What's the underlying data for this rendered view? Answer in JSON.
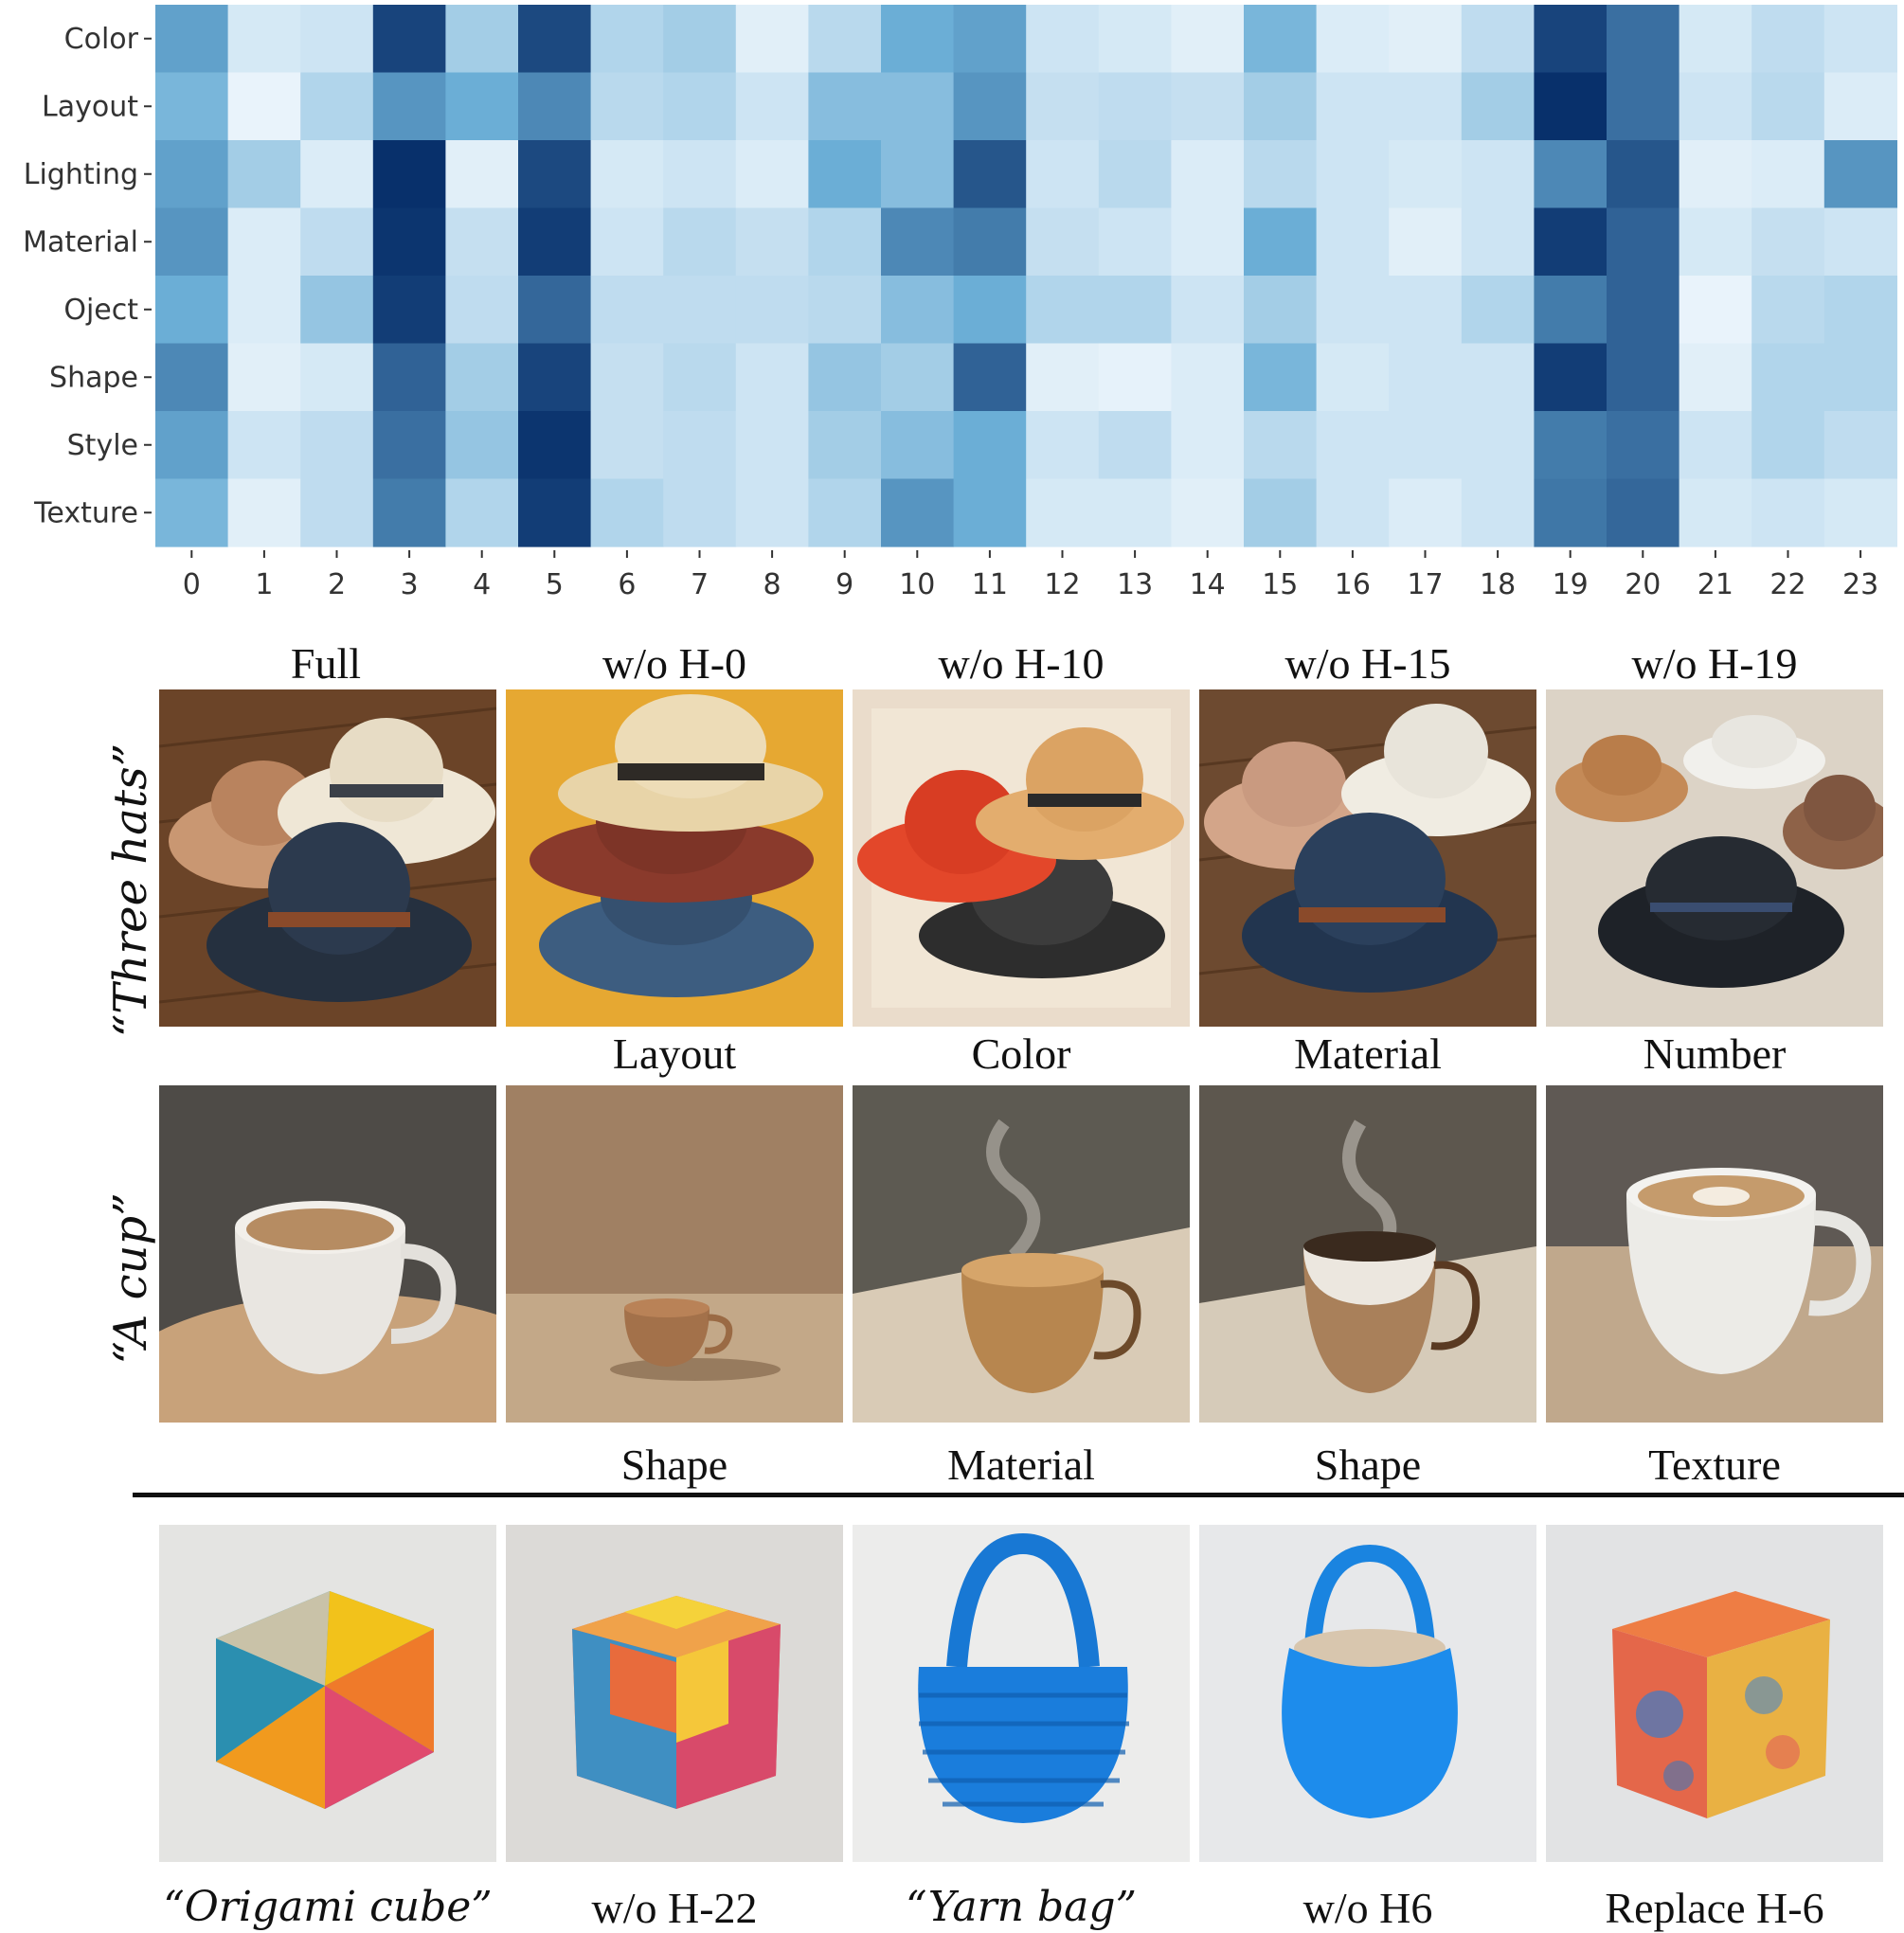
{
  "chart_data": {
    "type": "heatmap",
    "rows": [
      "Color",
      "Layout",
      "Lighting",
      "Material",
      "Oject",
      "Shape",
      "Style",
      "Texture"
    ],
    "columns": [
      "0",
      "1",
      "2",
      "3",
      "4",
      "5",
      "6",
      "7",
      "8",
      "9",
      "10",
      "11",
      "12",
      "13",
      "14",
      "15",
      "16",
      "17",
      "18",
      "19",
      "20",
      "21",
      "22",
      "23"
    ],
    "values": [
      [
        0.55,
        0.12,
        0.15,
        0.92,
        0.3,
        0.9,
        0.25,
        0.3,
        0.08,
        0.22,
        0.5,
        0.55,
        0.15,
        0.12,
        0.08,
        0.45,
        0.1,
        0.08,
        0.2,
        0.92,
        0.75,
        0.12,
        0.2,
        0.15
      ],
      [
        0.45,
        0.05,
        0.25,
        0.6,
        0.5,
        0.65,
        0.22,
        0.25,
        0.15,
        0.4,
        0.4,
        0.6,
        0.18,
        0.2,
        0.18,
        0.3,
        0.15,
        0.15,
        0.3,
        1.0,
        0.75,
        0.15,
        0.22,
        0.1
      ],
      [
        0.55,
        0.3,
        0.1,
        1.0,
        0.08,
        0.9,
        0.12,
        0.15,
        0.1,
        0.5,
        0.4,
        0.85,
        0.15,
        0.22,
        0.1,
        0.22,
        0.15,
        0.12,
        0.15,
        0.65,
        0.85,
        0.08,
        0.1,
        0.6
      ],
      [
        0.6,
        0.1,
        0.2,
        0.98,
        0.18,
        0.95,
        0.15,
        0.22,
        0.18,
        0.25,
        0.65,
        0.7,
        0.18,
        0.15,
        0.1,
        0.5,
        0.15,
        0.08,
        0.15,
        0.95,
        0.8,
        0.12,
        0.18,
        0.15
      ],
      [
        0.5,
        0.1,
        0.35,
        0.95,
        0.2,
        0.78,
        0.2,
        0.2,
        0.2,
        0.22,
        0.4,
        0.5,
        0.25,
        0.25,
        0.15,
        0.3,
        0.15,
        0.15,
        0.25,
        0.7,
        0.8,
        0.05,
        0.22,
        0.25
      ],
      [
        0.65,
        0.08,
        0.12,
        0.8,
        0.3,
        0.92,
        0.18,
        0.22,
        0.15,
        0.35,
        0.3,
        0.8,
        0.08,
        0.06,
        0.1,
        0.45,
        0.12,
        0.15,
        0.15,
        0.95,
        0.8,
        0.08,
        0.25,
        0.25
      ],
      [
        0.55,
        0.15,
        0.2,
        0.75,
        0.35,
        0.98,
        0.18,
        0.2,
        0.15,
        0.3,
        0.4,
        0.5,
        0.15,
        0.2,
        0.1,
        0.22,
        0.15,
        0.15,
        0.15,
        0.7,
        0.75,
        0.15,
        0.25,
        0.2
      ],
      [
        0.45,
        0.08,
        0.2,
        0.7,
        0.25,
        0.95,
        0.25,
        0.2,
        0.15,
        0.25,
        0.6,
        0.5,
        0.12,
        0.12,
        0.08,
        0.3,
        0.15,
        0.1,
        0.15,
        0.72,
        0.78,
        0.12,
        0.15,
        0.12
      ]
    ],
    "colormap": [
      "#f7fbff",
      "#08306b"
    ],
    "xlabel": "",
    "ylabel": ""
  },
  "colors": {
    "heat_low": "#f7fbff",
    "heat_mid": "#6aaed6",
    "heat_high": "#08306b"
  },
  "top_row": {
    "headers": [
      "Full",
      "w/o H-0",
      "w/o H-10",
      "w/o H-15",
      "w/o H-19"
    ],
    "prompt": "“Three hats”"
  },
  "middle_row": {
    "headers": [
      "Layout",
      "Color",
      "Material",
      "Number"
    ],
    "prompt": "“A cup”"
  },
  "cup_captions": [
    "Shape",
    "Material",
    "Shape",
    "Texture"
  ],
  "bottom_row": {
    "captions": [
      "“Origami cube”",
      "w/o H-22",
      "“Yarn bag”",
      "w/o H6",
      "Replace H-6"
    ]
  }
}
